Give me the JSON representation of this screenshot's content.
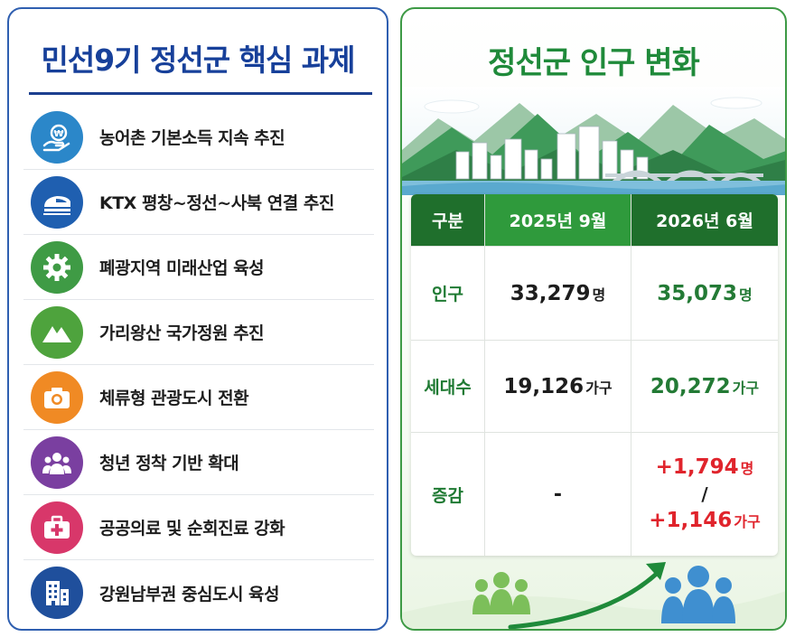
{
  "left": {
    "title": "민선9기 정선군 핵심 과제",
    "tasks": [
      {
        "label": "농어촌 기본소득 지속 추진",
        "icon": "money-hand-icon",
        "color": "#2b87c9"
      },
      {
        "label": "KTX 평창~정선~사북 연결 추진",
        "icon": "train-icon",
        "color": "#1f5fb0"
      },
      {
        "label": "폐광지역 미래산업 육성",
        "icon": "gear-icon",
        "color": "#3f9b45"
      },
      {
        "label": "가리왕산 국가정원 추진",
        "icon": "mountain-icon",
        "color": "#4ea33d"
      },
      {
        "label": "체류형 관광도시 전환",
        "icon": "camera-icon",
        "color": "#f08a24"
      },
      {
        "label": "청년 정착 기반 확대",
        "icon": "group-icon",
        "color": "#7a3fa0"
      },
      {
        "label": "공공의료 및 순회진료 강화",
        "icon": "medical-kit-icon",
        "color": "#d8376a"
      },
      {
        "label": "강원남부권 중심도시 육성",
        "icon": "building-icon",
        "color": "#1f4f9c"
      }
    ]
  },
  "right": {
    "title": "정선군 인구 변화",
    "table": {
      "headers": [
        "구분",
        "2025년 9월",
        "2026년 6월"
      ],
      "population": {
        "label": "인구",
        "v2025": "33,279",
        "v2026": "35,073",
        "unit": "명"
      },
      "households": {
        "label": "세대수",
        "v2025": "19,126",
        "v2026": "20,272",
        "unit": "가구"
      },
      "change": {
        "label": "증감",
        "v2025": "-",
        "pop_change": "+1,794",
        "pop_unit": "명",
        "separator": "/",
        "house_change": "+1,146",
        "house_unit": "가구"
      }
    }
  },
  "colors": {
    "left_accent": "#17409a",
    "right_accent": "#1f8a3a",
    "increase_red": "#e0242c"
  }
}
